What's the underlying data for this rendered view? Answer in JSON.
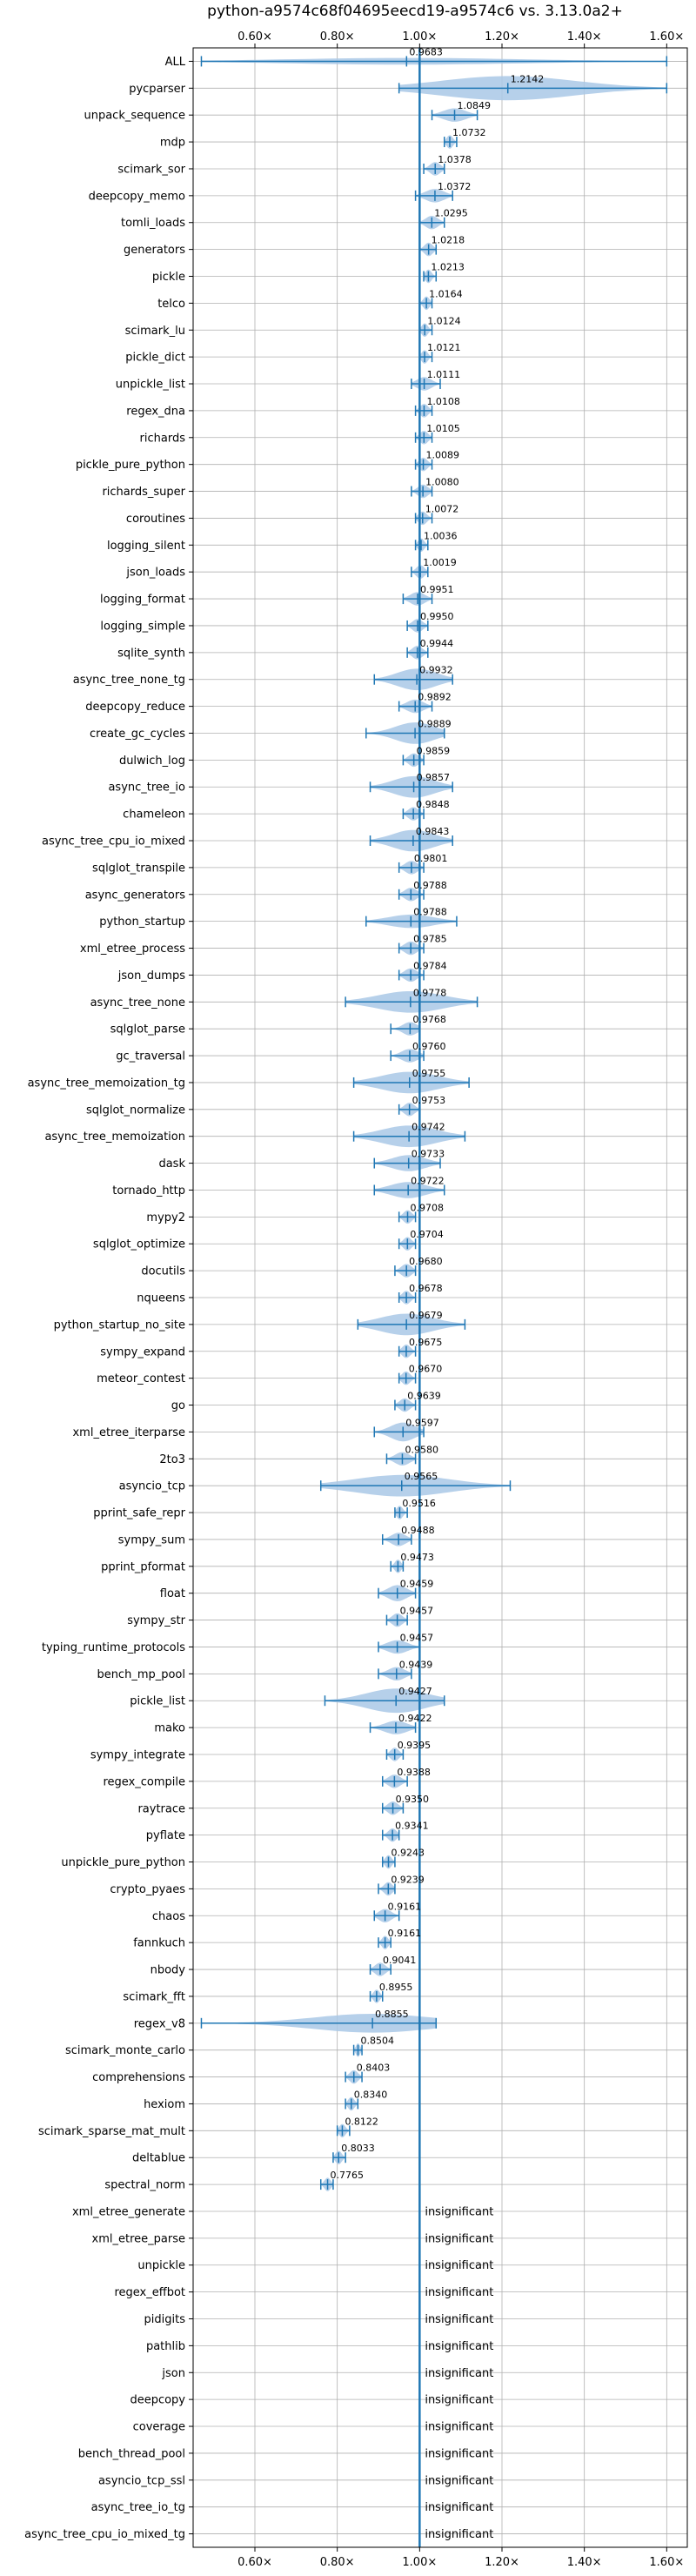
{
  "chart_data": {
    "type": "violin",
    "title": "python-a9574c68f04695eecd19-a9574c6 vs. 3.13.0a2+",
    "xlim": [
      0.45,
      1.65
    ],
    "xticks": [
      0.6,
      0.8,
      1.0,
      1.2,
      1.4,
      1.6
    ],
    "xtick_labels": [
      "0.60×",
      "0.80×",
      "1.00×",
      "1.20×",
      "1.40×",
      "1.60×"
    ],
    "grid": true,
    "colors": {
      "violin": "#a9c8e6",
      "accent": "#1f77b4",
      "grid": "#b0b0b0"
    },
    "insignificant_label": "insignificant",
    "benchmarks": [
      {
        "name": "ALL",
        "value": "0.9683",
        "mean": 0.9683,
        "min": 0.47,
        "max": 1.6,
        "width": 0.25
      },
      {
        "name": "pycparser",
        "value": "1.2142",
        "mean": 1.2142,
        "min": 0.95,
        "max": 1.6,
        "width": 0.9
      },
      {
        "name": "unpack_sequence",
        "value": "1.0849",
        "mean": 1.0849,
        "min": 1.03,
        "max": 1.14,
        "width": 0.5
      },
      {
        "name": "mdp",
        "value": "1.0732",
        "mean": 1.0732,
        "min": 1.06,
        "max": 1.09,
        "width": 0.5
      },
      {
        "name": "scimark_sor",
        "value": "1.0378",
        "mean": 1.0378,
        "min": 1.01,
        "max": 1.06,
        "width": 0.5
      },
      {
        "name": "deepcopy_memo",
        "value": "1.0372",
        "mean": 1.0372,
        "min": 0.99,
        "max": 1.08,
        "width": 0.5
      },
      {
        "name": "tomli_loads",
        "value": "1.0295",
        "mean": 1.0295,
        "min": 1.0,
        "max": 1.06,
        "width": 0.5
      },
      {
        "name": "generators",
        "value": "1.0218",
        "mean": 1.0218,
        "min": 1.0,
        "max": 1.04,
        "width": 0.5
      },
      {
        "name": "pickle",
        "value": "1.0213",
        "mean": 1.0213,
        "min": 1.01,
        "max": 1.04,
        "width": 0.5
      },
      {
        "name": "telco",
        "value": "1.0164",
        "mean": 1.0164,
        "min": 1.0,
        "max": 1.03,
        "width": 0.5
      },
      {
        "name": "scimark_lu",
        "value": "1.0124",
        "mean": 1.0124,
        "min": 1.0,
        "max": 1.03,
        "width": 0.5
      },
      {
        "name": "pickle_dict",
        "value": "1.0121",
        "mean": 1.0121,
        "min": 1.0,
        "max": 1.03,
        "width": 0.5
      },
      {
        "name": "unpickle_list",
        "value": "1.0111",
        "mean": 1.0111,
        "min": 0.98,
        "max": 1.05,
        "width": 0.5
      },
      {
        "name": "regex_dna",
        "value": "1.0108",
        "mean": 1.0108,
        "min": 0.99,
        "max": 1.03,
        "width": 0.5
      },
      {
        "name": "richards",
        "value": "1.0105",
        "mean": 1.0105,
        "min": 0.99,
        "max": 1.03,
        "width": 0.5
      },
      {
        "name": "pickle_pure_python",
        "value": "1.0089",
        "mean": 1.0089,
        "min": 0.99,
        "max": 1.03,
        "width": 0.5
      },
      {
        "name": "richards_super",
        "value": "1.0080",
        "mean": 1.008,
        "min": 0.98,
        "max": 1.03,
        "width": 0.5
      },
      {
        "name": "coroutines",
        "value": "1.0072",
        "mean": 1.0072,
        "min": 0.99,
        "max": 1.03,
        "width": 0.5
      },
      {
        "name": "logging_silent",
        "value": "1.0036",
        "mean": 1.0036,
        "min": 0.99,
        "max": 1.02,
        "width": 0.5
      },
      {
        "name": "json_loads",
        "value": "1.0019",
        "mean": 1.0019,
        "min": 0.98,
        "max": 1.02,
        "width": 0.5
      },
      {
        "name": "logging_format",
        "value": "0.9951",
        "mean": 0.9951,
        "min": 0.96,
        "max": 1.03,
        "width": 0.5
      },
      {
        "name": "logging_simple",
        "value": "0.9950",
        "mean": 0.995,
        "min": 0.97,
        "max": 1.02,
        "width": 0.5
      },
      {
        "name": "sqlite_synth",
        "value": "0.9944",
        "mean": 0.9944,
        "min": 0.97,
        "max": 1.02,
        "width": 0.5
      },
      {
        "name": "async_tree_none_tg",
        "value": "0.9932",
        "mean": 0.9932,
        "min": 0.89,
        "max": 1.08,
        "width": 0.8
      },
      {
        "name": "deepcopy_reduce",
        "value": "0.9892",
        "mean": 0.9892,
        "min": 0.95,
        "max": 1.03,
        "width": 0.5
      },
      {
        "name": "create_gc_cycles",
        "value": "0.9889",
        "mean": 0.9889,
        "min": 0.87,
        "max": 1.06,
        "width": 0.8
      },
      {
        "name": "dulwich_log",
        "value": "0.9859",
        "mean": 0.9859,
        "min": 0.96,
        "max": 1.01,
        "width": 0.5
      },
      {
        "name": "async_tree_io",
        "value": "0.9857",
        "mean": 0.9857,
        "min": 0.88,
        "max": 1.08,
        "width": 0.8
      },
      {
        "name": "chameleon",
        "value": "0.9848",
        "mean": 0.9848,
        "min": 0.96,
        "max": 1.01,
        "width": 0.5
      },
      {
        "name": "async_tree_cpu_io_mixed",
        "value": "0.9843",
        "mean": 0.9843,
        "min": 0.88,
        "max": 1.08,
        "width": 0.8
      },
      {
        "name": "sqlglot_transpile",
        "value": "0.9801",
        "mean": 0.9801,
        "min": 0.95,
        "max": 1.01,
        "width": 0.5
      },
      {
        "name": "async_generators",
        "value": "0.9788",
        "mean": 0.9788,
        "min": 0.95,
        "max": 1.01,
        "width": 0.5
      },
      {
        "name": "python_startup",
        "value": "0.9788",
        "mean": 0.9788,
        "min": 0.87,
        "max": 1.09,
        "width": 0.5
      },
      {
        "name": "xml_etree_process",
        "value": "0.9785",
        "mean": 0.9785,
        "min": 0.95,
        "max": 1.01,
        "width": 0.5
      },
      {
        "name": "json_dumps",
        "value": "0.9784",
        "mean": 0.9784,
        "min": 0.95,
        "max": 1.01,
        "width": 0.5
      },
      {
        "name": "async_tree_none",
        "value": "0.9778",
        "mean": 0.9778,
        "min": 0.82,
        "max": 1.14,
        "width": 0.8
      },
      {
        "name": "sqlglot_parse",
        "value": "0.9768",
        "mean": 0.9768,
        "min": 0.93,
        "max": 1.0,
        "width": 0.5
      },
      {
        "name": "gc_traversal",
        "value": "0.9760",
        "mean": 0.976,
        "min": 0.93,
        "max": 1.01,
        "width": 0.5
      },
      {
        "name": "async_tree_memoization_tg",
        "value": "0.9755",
        "mean": 0.9755,
        "min": 0.84,
        "max": 1.12,
        "width": 0.8
      },
      {
        "name": "sqlglot_normalize",
        "value": "0.9753",
        "mean": 0.9753,
        "min": 0.95,
        "max": 1.0,
        "width": 0.5
      },
      {
        "name": "async_tree_memoization",
        "value": "0.9742",
        "mean": 0.9742,
        "min": 0.84,
        "max": 1.11,
        "width": 0.8
      },
      {
        "name": "dask",
        "value": "0.9733",
        "mean": 0.9733,
        "min": 0.89,
        "max": 1.05,
        "width": 0.6
      },
      {
        "name": "tornado_http",
        "value": "0.9722",
        "mean": 0.9722,
        "min": 0.89,
        "max": 1.06,
        "width": 0.6
      },
      {
        "name": "mypy2",
        "value": "0.9708",
        "mean": 0.9708,
        "min": 0.95,
        "max": 0.99,
        "width": 0.5
      },
      {
        "name": "sqlglot_optimize",
        "value": "0.9704",
        "mean": 0.9704,
        "min": 0.95,
        "max": 0.99,
        "width": 0.5
      },
      {
        "name": "docutils",
        "value": "0.9680",
        "mean": 0.968,
        "min": 0.94,
        "max": 0.99,
        "width": 0.5
      },
      {
        "name": "nqueens",
        "value": "0.9678",
        "mean": 0.9678,
        "min": 0.95,
        "max": 0.99,
        "width": 0.5
      },
      {
        "name": "python_startup_no_site",
        "value": "0.9679",
        "mean": 0.9679,
        "min": 0.85,
        "max": 1.11,
        "width": 0.8
      },
      {
        "name": "sympy_expand",
        "value": "0.9675",
        "mean": 0.9675,
        "min": 0.95,
        "max": 0.99,
        "width": 0.5
      },
      {
        "name": "meteor_contest",
        "value": "0.9670",
        "mean": 0.967,
        "min": 0.95,
        "max": 0.99,
        "width": 0.5
      },
      {
        "name": "go",
        "value": "0.9639",
        "mean": 0.9639,
        "min": 0.94,
        "max": 0.99,
        "width": 0.5
      },
      {
        "name": "xml_etree_iterparse",
        "value": "0.9597",
        "mean": 0.9597,
        "min": 0.89,
        "max": 1.01,
        "width": 0.7
      },
      {
        "name": "2to3",
        "value": "0.9580",
        "mean": 0.958,
        "min": 0.92,
        "max": 0.99,
        "width": 0.5
      },
      {
        "name": "asyncio_tcp",
        "value": "0.9565",
        "mean": 0.9565,
        "min": 0.76,
        "max": 1.22,
        "width": 0.8
      },
      {
        "name": "pprint_safe_repr",
        "value": "0.9516",
        "mean": 0.9516,
        "min": 0.94,
        "max": 0.97,
        "width": 0.5
      },
      {
        "name": "sympy_sum",
        "value": "0.9488",
        "mean": 0.9488,
        "min": 0.91,
        "max": 0.98,
        "width": 0.5
      },
      {
        "name": "pprint_pformat",
        "value": "0.9473",
        "mean": 0.9473,
        "min": 0.93,
        "max": 0.96,
        "width": 0.5
      },
      {
        "name": "float",
        "value": "0.9459",
        "mean": 0.9459,
        "min": 0.9,
        "max": 0.99,
        "width": 0.6
      },
      {
        "name": "sympy_str",
        "value": "0.9457",
        "mean": 0.9457,
        "min": 0.92,
        "max": 0.97,
        "width": 0.5
      },
      {
        "name": "typing_runtime_protocols",
        "value": "0.9457",
        "mean": 0.9457,
        "min": 0.9,
        "max": 1.0,
        "width": 0.5
      },
      {
        "name": "bench_mp_pool",
        "value": "0.9439",
        "mean": 0.9439,
        "min": 0.9,
        "max": 0.98,
        "width": 0.5
      },
      {
        "name": "pickle_list",
        "value": "0.9427",
        "mean": 0.9427,
        "min": 0.77,
        "max": 1.06,
        "width": 0.9
      },
      {
        "name": "mako",
        "value": "0.9422",
        "mean": 0.9422,
        "min": 0.88,
        "max": 0.99,
        "width": 0.5
      },
      {
        "name": "sympy_integrate",
        "value": "0.9395",
        "mean": 0.9395,
        "min": 0.92,
        "max": 0.96,
        "width": 0.5
      },
      {
        "name": "regex_compile",
        "value": "0.9388",
        "mean": 0.9388,
        "min": 0.91,
        "max": 0.97,
        "width": 0.5
      },
      {
        "name": "raytrace",
        "value": "0.9350",
        "mean": 0.935,
        "min": 0.91,
        "max": 0.96,
        "width": 0.5
      },
      {
        "name": "pyflate",
        "value": "0.9341",
        "mean": 0.9341,
        "min": 0.91,
        "max": 0.95,
        "width": 0.5
      },
      {
        "name": "unpickle_pure_python",
        "value": "0.9243",
        "mean": 0.9243,
        "min": 0.91,
        "max": 0.94,
        "width": 0.5
      },
      {
        "name": "crypto_pyaes",
        "value": "0.9239",
        "mean": 0.9239,
        "min": 0.9,
        "max": 0.94,
        "width": 0.5
      },
      {
        "name": "chaos",
        "value": "0.9161",
        "mean": 0.9161,
        "min": 0.89,
        "max": 0.95,
        "width": 0.5
      },
      {
        "name": "fannkuch",
        "value": "0.9161",
        "mean": 0.9161,
        "min": 0.9,
        "max": 0.93,
        "width": 0.5
      },
      {
        "name": "nbody",
        "value": "0.9041",
        "mean": 0.9041,
        "min": 0.88,
        "max": 0.93,
        "width": 0.5
      },
      {
        "name": "scimark_fft",
        "value": "0.8955",
        "mean": 0.8955,
        "min": 0.88,
        "max": 0.91,
        "width": 0.5
      },
      {
        "name": "regex_v8",
        "value": "0.8855",
        "mean": 0.8855,
        "min": 0.47,
        "max": 1.04,
        "width": 0.7
      },
      {
        "name": "scimark_monte_carlo",
        "value": "0.8504",
        "mean": 0.8504,
        "min": 0.84,
        "max": 0.86,
        "width": 0.5
      },
      {
        "name": "comprehensions",
        "value": "0.8403",
        "mean": 0.8403,
        "min": 0.82,
        "max": 0.86,
        "width": 0.5
      },
      {
        "name": "hexiom",
        "value": "0.8340",
        "mean": 0.834,
        "min": 0.82,
        "max": 0.85,
        "width": 0.5
      },
      {
        "name": "scimark_sparse_mat_mult",
        "value": "0.8122",
        "mean": 0.8122,
        "min": 0.8,
        "max": 0.83,
        "width": 0.5
      },
      {
        "name": "deltablue",
        "value": "0.8033",
        "mean": 0.8033,
        "min": 0.79,
        "max": 0.82,
        "width": 0.5
      },
      {
        "name": "spectral_norm",
        "value": "0.7765",
        "mean": 0.7765,
        "min": 0.76,
        "max": 0.79,
        "width": 0.5
      },
      {
        "name": "xml_etree_generate",
        "insignificant": true
      },
      {
        "name": "xml_etree_parse",
        "insignificant": true
      },
      {
        "name": "unpickle",
        "insignificant": true
      },
      {
        "name": "regex_effbot",
        "insignificant": true
      },
      {
        "name": "pidigits",
        "insignificant": true
      },
      {
        "name": "pathlib",
        "insignificant": true
      },
      {
        "name": "json",
        "insignificant": true
      },
      {
        "name": "deepcopy",
        "insignificant": true
      },
      {
        "name": "coverage",
        "insignificant": true
      },
      {
        "name": "bench_thread_pool",
        "insignificant": true
      },
      {
        "name": "asyncio_tcp_ssl",
        "insignificant": true
      },
      {
        "name": "async_tree_io_tg",
        "insignificant": true
      },
      {
        "name": "async_tree_cpu_io_mixed_tg",
        "insignificant": true
      }
    ]
  }
}
